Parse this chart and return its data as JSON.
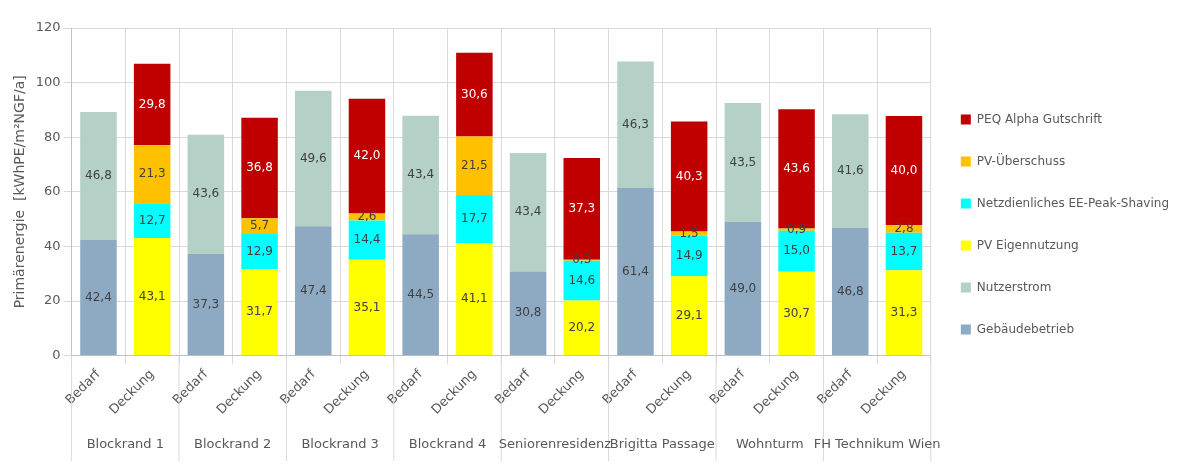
{
  "chart_data": {
    "type": "bar",
    "stacked": true,
    "ylabel": "Primärenergie  [kWhPE/m²NGF/a]",
    "categories": [
      "Bedarf",
      "Deckung",
      "Bedarf",
      "Deckung",
      "Bedarf",
      "Deckung",
      "Bedarf",
      "Deckung",
      "Bedarf",
      "Deckung",
      "Bedarf",
      "Deckung",
      "Bedarf",
      "Deckung",
      "Bedarf",
      "Deckung"
    ],
    "annotations": [
      "Blockrand 1",
      "Blockrand 2",
      "Blockrand 3",
      "Blockrand 4",
      "Seniorenresidenz",
      "Brigitta Passage",
      "Wohnturm",
      "FH Technikum Wien"
    ],
    "series": [
      {
        "name": "Gebäudebetrieb",
        "color": "#8eaac3",
        "values": [
          42.4,
          null,
          37.3,
          null,
          47.4,
          null,
          44.5,
          null,
          30.8,
          null,
          61.4,
          null,
          49.0,
          null,
          46.8,
          null
        ],
        "value_labels": [
          "42,4",
          null,
          "37,3",
          null,
          "47,4",
          null,
          "44,5",
          null,
          "30,8",
          null,
          "61,4",
          null,
          "49,0",
          null,
          "46,8",
          null
        ]
      },
      {
        "name": "Nutzerstrom",
        "color": "#b4d0c7",
        "values": [
          46.8,
          null,
          43.6,
          null,
          49.6,
          null,
          43.4,
          null,
          43.4,
          null,
          46.3,
          null,
          43.5,
          null,
          41.6,
          null
        ],
        "value_labels": [
          "46,8",
          null,
          "43,6",
          null,
          "49,6",
          null,
          "43,4",
          null,
          "43,4",
          null,
          "46,3",
          null,
          "43,5",
          null,
          "41,6",
          null
        ]
      },
      {
        "name": "PV Eigennutzung",
        "color": "#ffff00",
        "values": [
          null,
          43.1,
          null,
          31.7,
          null,
          35.1,
          null,
          41.1,
          null,
          20.2,
          null,
          29.1,
          null,
          30.7,
          null,
          31.3
        ],
        "value_labels": [
          null,
          "43,1",
          null,
          "31,7",
          null,
          "35,1",
          null,
          "41,1",
          null,
          "20,2",
          null,
          "29,1",
          null,
          "30,7",
          null,
          "31,3"
        ]
      },
      {
        "name": "Netzdienliches EE-Peak-Shaving",
        "color": "#00ffff",
        "values": [
          null,
          12.7,
          null,
          12.9,
          null,
          14.4,
          null,
          17.7,
          null,
          14.6,
          null,
          14.9,
          null,
          15.0,
          null,
          13.7
        ],
        "value_labels": [
          null,
          "12,7",
          null,
          "12,9",
          null,
          "14,4",
          null,
          "17,7",
          null,
          "14,6",
          null,
          "14,9",
          null,
          "15,0",
          null,
          "13,7"
        ]
      },
      {
        "name": "PV-Überschuss",
        "color": "#ffc000",
        "values": [
          null,
          21.3,
          null,
          5.7,
          null,
          2.6,
          null,
          21.5,
          null,
          0.3,
          null,
          1.5,
          null,
          0.9,
          null,
          2.8
        ],
        "value_labels": [
          null,
          "21,3",
          null,
          "5,7",
          null,
          "2,6",
          null,
          "21,5",
          null,
          "0,3",
          null,
          "1,5",
          null,
          "0,9",
          null,
          "2,8"
        ]
      },
      {
        "name": "PEQ Alpha Gutschrift",
        "color": "#c00000",
        "values": [
          null,
          29.8,
          null,
          36.8,
          null,
          42.0,
          null,
          30.6,
          null,
          37.3,
          null,
          40.3,
          null,
          43.6,
          null,
          40.0
        ],
        "value_labels": [
          null,
          "29,8",
          null,
          "36,8",
          null,
          "42,0",
          null,
          "30,6",
          null,
          "37,3",
          null,
          "40,3",
          null,
          "43,6",
          null,
          "40,0"
        ]
      }
    ],
    "ylim": [
      0,
      120
    ],
    "yticks": [
      0,
      20,
      40,
      60,
      80,
      100,
      120
    ],
    "grid": true,
    "legend": "right"
  }
}
